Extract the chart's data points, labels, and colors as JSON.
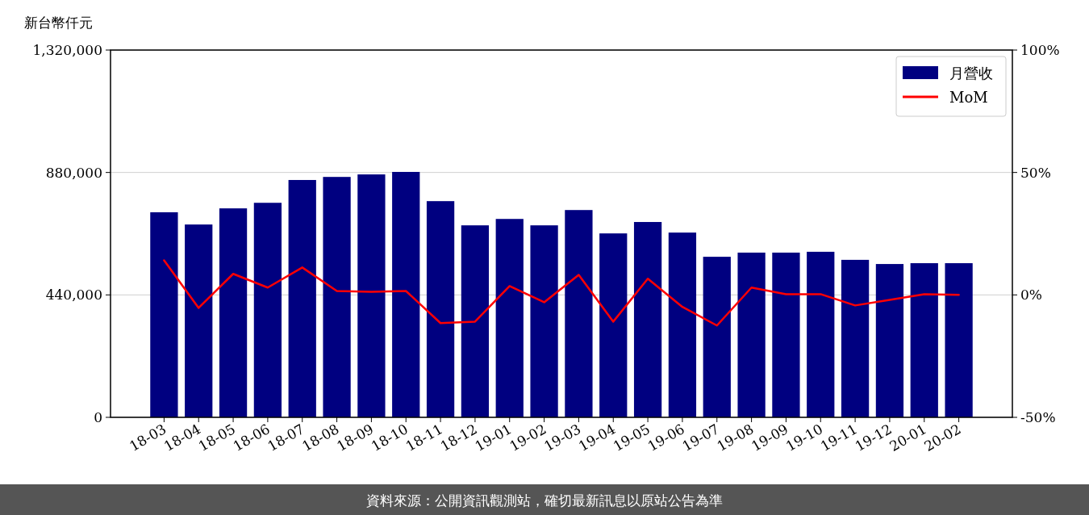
{
  "chart_data": {
    "type": "bar",
    "ylabel": "新台幣仟元",
    "categories": [
      "18-03",
      "18-04",
      "18-05",
      "18-06",
      "18-07",
      "18-08",
      "18-09",
      "18-10",
      "18-11",
      "18-12",
      "19-01",
      "19-02",
      "19-03",
      "19-04",
      "19-05",
      "19-06",
      "19-07",
      "19-08",
      "19-09",
      "19-10",
      "19-11",
      "19-12",
      "20-01",
      "20-02"
    ],
    "series": [
      {
        "name": "月營收",
        "color": "#000080",
        "values": [
          737000,
          693000,
          751000,
          771000,
          853000,
          864000,
          873000,
          882000,
          777000,
          690000,
          713000,
          690000,
          745000,
          661000,
          702000,
          664000,
          577000,
          592000,
          592000,
          595000,
          566000,
          551000,
          554000,
          554000
        ]
      },
      {
        "name": "MoM",
        "type": "line",
        "axis": "y2",
        "color": "#ff0000",
        "values": [
          14.1,
          -5.3,
          8.6,
          3.0,
          11.2,
          1.6,
          1.3,
          1.6,
          -11.5,
          -10.9,
          3.6,
          -3.0,
          8.2,
          -10.9,
          6.6,
          -4.9,
          -12.5,
          3.0,
          0.3,
          0.3,
          -4.3,
          -2.0,
          0.3,
          0.0
        ]
      }
    ],
    "ylim": [
      0,
      1320000
    ],
    "yticks": [
      {
        "value": 0,
        "label": "0"
      },
      {
        "value": 440000,
        "label": "440,000"
      },
      {
        "value": 880000,
        "label": "880,000"
      },
      {
        "value": 1320000,
        "label": "1,320,000"
      }
    ],
    "y2lim": [
      -50,
      100
    ],
    "y2ticks": [
      {
        "value": -50,
        "label": "-50%"
      },
      {
        "value": 0,
        "label": "0%"
      },
      {
        "value": 50,
        "label": "50%"
      },
      {
        "value": 100,
        "label": "100%"
      }
    ],
    "grid": "y",
    "legend": "top right",
    "annotations": [
      "資料來源：公開資訊觀測站，確切最新訊息以原站公告為準"
    ]
  }
}
